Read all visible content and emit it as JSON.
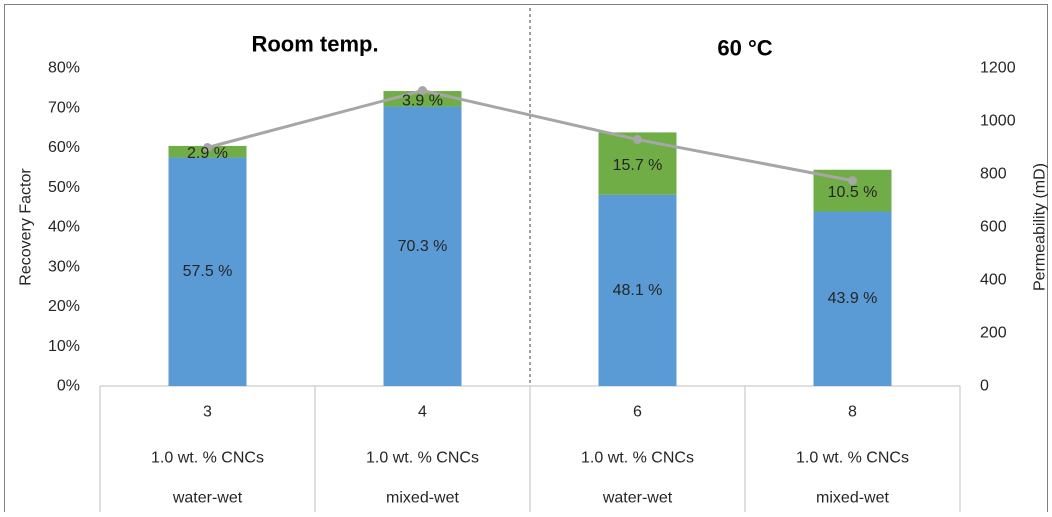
{
  "chart_data": {
    "type": "bar",
    "stacked": true,
    "categories": [
      "3",
      "4",
      "6",
      "8"
    ],
    "category_rows": [
      [
        "3",
        "4",
        "6",
        "8"
      ],
      [
        "1.0 wt. % CNCs",
        "1.0 wt. % CNCs",
        "1.0 wt. % CNCs",
        "1.0 wt. % CNCs"
      ],
      [
        "water-wet",
        "mixed-wet",
        "water-wet",
        "mixed-wet"
      ]
    ],
    "groups": [
      "Room temp.",
      "60 °C"
    ],
    "series": [
      {
        "values": [
          57.5,
          70.3,
          48.1,
          43.9
        ],
        "labels": [
          "57.5 %",
          "70.3 %",
          "48.1 %",
          "43.9 %"
        ],
        "color": "#5b9bd5"
      },
      {
        "values": [
          2.9,
          3.9,
          15.7,
          10.5
        ],
        "labels": [
          "2.9 %",
          "3.9 %",
          "15.7 %",
          "10.5 %"
        ],
        "color": "#70ad47"
      }
    ],
    "line_series": {
      "axis": "right",
      "values": [
        900,
        1115,
        930,
        775
      ],
      "color": "#a6a6a6"
    },
    "ylabel": "Recovery Factor",
    "ylim": [
      0,
      80
    ],
    "yticks": [
      "0%",
      "10%",
      "20%",
      "30%",
      "40%",
      "50%",
      "60%",
      "70%",
      "80%"
    ],
    "y2label": "Permeability (mD)",
    "y2lim": [
      0,
      1200
    ],
    "y2ticks": [
      "0",
      "200",
      "400",
      "600",
      "800",
      "1000",
      "1200"
    ],
    "grid": false
  }
}
